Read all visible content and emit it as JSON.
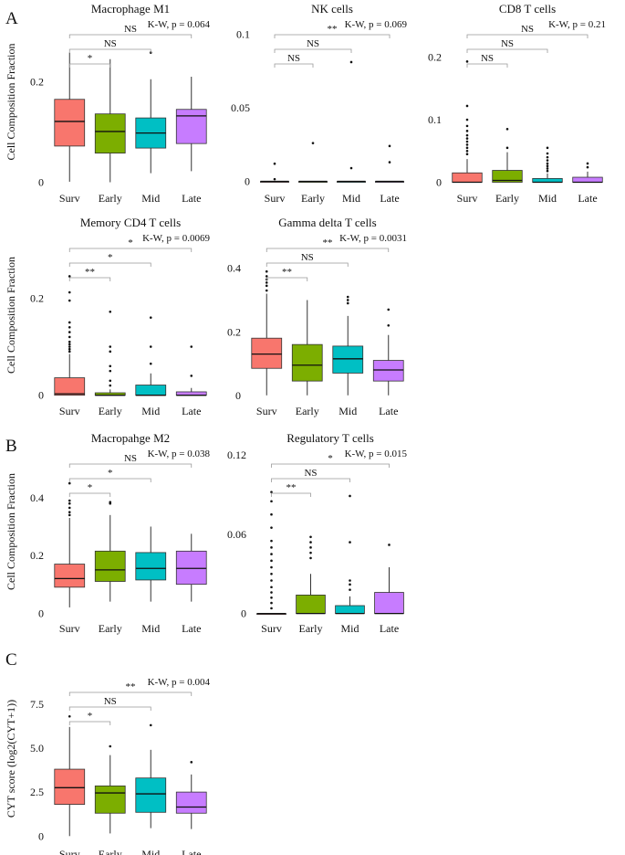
{
  "figure": {
    "panel_letters": [
      "A",
      "B",
      "C"
    ],
    "colors": {
      "Surv": "#f8766d",
      "Early": "#7cae00",
      "Mid": "#00bfc4",
      "Late": "#c77cff"
    }
  },
  "chart_data": [
    {
      "type": "box",
      "id": "macro-m1",
      "title": "Macrophage M1",
      "ylabel": "Cell Composition Fraction",
      "categories": [
        "Surv",
        "Early",
        "Mid",
        "Late"
      ],
      "ylim": [
        -0.01,
        0.33
      ],
      "yticks": [
        0,
        0.2
      ],
      "ytick_labels": [
        "0",
        "0.2"
      ],
      "boxes": [
        {
          "q1": 0.072,
          "median": 0.121,
          "q3": 0.165,
          "wlo": 0.001,
          "whi": 0.258,
          "outliers": []
        },
        {
          "q1": 0.058,
          "median": 0.101,
          "q3": 0.136,
          "wlo": 0.0,
          "whi": 0.245,
          "outliers": []
        },
        {
          "q1": 0.068,
          "median": 0.098,
          "q3": 0.128,
          "wlo": 0.018,
          "whi": 0.205,
          "outliers": [
            0.258
          ]
        },
        {
          "q1": 0.077,
          "median": 0.132,
          "q3": 0.145,
          "wlo": 0.022,
          "whi": 0.21,
          "outliers": []
        }
      ],
      "brackets": [
        {
          "from": "Surv",
          "to": "Early",
          "label": "*"
        },
        {
          "from": "Surv",
          "to": "Mid",
          "label": "NS"
        },
        {
          "from": "Surv",
          "to": "Late",
          "label": "NS"
        }
      ],
      "kw": "K-W, p = 0.064"
    },
    {
      "type": "box",
      "id": "nk",
      "title": "NK cells",
      "ylabel": "",
      "categories": [
        "Surv",
        "Early",
        "Mid",
        "Late"
      ],
      "ylim": [
        -0.004,
        0.112
      ],
      "yticks": [
        0,
        0.05,
        0.1
      ],
      "ytick_labels": [
        "0",
        "0.05",
        "0.1"
      ],
      "boxes": [
        {
          "q1": 0.0,
          "median": 0.0,
          "q3": 0.0,
          "wlo": 0.0,
          "whi": 0.0,
          "outliers": [
            0.012,
            0.0015
          ]
        },
        {
          "q1": 0.0,
          "median": 0.0,
          "q3": 0.0,
          "wlo": 0.0,
          "whi": 0.0,
          "outliers": [
            0.026
          ]
        },
        {
          "q1": 0.0,
          "median": 0.0,
          "q3": 0.0,
          "wlo": 0.0,
          "whi": 0.0,
          "outliers": [
            0.081,
            0.009
          ]
        },
        {
          "q1": 0.0,
          "median": 0.0,
          "q3": 0.0,
          "wlo": 0.0,
          "whi": 0.0,
          "outliers": [
            0.024,
            0.013
          ]
        }
      ],
      "brackets": [
        {
          "from": "Surv",
          "to": "Early",
          "label": "NS"
        },
        {
          "from": "Surv",
          "to": "Mid",
          "label": "NS"
        },
        {
          "from": "Surv",
          "to": "Late",
          "label": "**"
        }
      ],
      "kw": "K-W, p = 0.069"
    },
    {
      "type": "box",
      "id": "cd8",
      "title": "CD8 T cells",
      "ylabel": "",
      "categories": [
        "Surv",
        "Early",
        "Mid",
        "Late"
      ],
      "ylim": [
        -0.008,
        0.265
      ],
      "yticks": [
        0,
        0.1,
        0.2
      ],
      "ytick_labels": [
        "0",
        "0.1",
        "0.2"
      ],
      "boxes": [
        {
          "q1": 0.0,
          "median": 0.0,
          "q3": 0.015,
          "wlo": 0.0,
          "whi": 0.037,
          "outliers": [
            0.045,
            0.05,
            0.055,
            0.06,
            0.065,
            0.07,
            0.075,
            0.082,
            0.09,
            0.1,
            0.122,
            0.193
          ]
        },
        {
          "q1": 0.0,
          "median": 0.003,
          "q3": 0.019,
          "wlo": 0.0,
          "whi": 0.048,
          "outliers": [
            0.055,
            0.085
          ]
        },
        {
          "q1": 0.0,
          "median": 0.0,
          "q3": 0.006,
          "wlo": 0.0,
          "whi": 0.014,
          "outliers": [
            0.018,
            0.022,
            0.026,
            0.03,
            0.035,
            0.04,
            0.046,
            0.055
          ]
        },
        {
          "q1": 0.0,
          "median": 0.0,
          "q3": 0.008,
          "wlo": 0.0,
          "whi": 0.017,
          "outliers": [
            0.024,
            0.03
          ]
        }
      ],
      "brackets": [
        {
          "from": "Surv",
          "to": "Early",
          "label": "NS"
        },
        {
          "from": "Surv",
          "to": "Mid",
          "label": "NS"
        },
        {
          "from": "Surv",
          "to": "Late",
          "label": "NS"
        }
      ],
      "kw": "K-W, p = 0.21"
    },
    {
      "type": "box",
      "id": "cd4mem",
      "title": "Memory CD4 T cells",
      "ylabel": "Cell Composition Fraction",
      "categories": [
        "Surv",
        "Early",
        "Mid",
        "Late"
      ],
      "ylim": [
        -0.01,
        0.34
      ],
      "yticks": [
        0,
        0.2
      ],
      "ytick_labels": [
        "0",
        "0.2"
      ],
      "boxes": [
        {
          "q1": 0.0,
          "median": 0.003,
          "q3": 0.036,
          "wlo": 0.0,
          "whi": 0.085,
          "outliers": [
            0.09,
            0.095,
            0.1,
            0.105,
            0.11,
            0.12,
            0.13,
            0.14,
            0.15,
            0.195,
            0.212,
            0.245
          ]
        },
        {
          "q1": 0.0,
          "median": 0.0,
          "q3": 0.005,
          "wlo": 0.0,
          "whi": 0.012,
          "outliers": [
            0.02,
            0.03,
            0.05,
            0.06,
            0.09,
            0.1,
            0.172
          ]
        },
        {
          "q1": 0.0,
          "median": 0.0,
          "q3": 0.021,
          "wlo": 0.0,
          "whi": 0.045,
          "outliers": [
            0.065,
            0.1,
            0.16
          ]
        },
        {
          "q1": 0.0,
          "median": 0.0,
          "q3": 0.007,
          "wlo": 0.0,
          "whi": 0.015,
          "outliers": [
            0.04,
            0.1
          ]
        }
      ],
      "brackets": [
        {
          "from": "Surv",
          "to": "Early",
          "label": "**"
        },
        {
          "from": "Surv",
          "to": "Mid",
          "label": "*"
        },
        {
          "from": "Surv",
          "to": "Late",
          "label": "*"
        }
      ],
      "kw": "K-W, p = 0.0069"
    },
    {
      "type": "box",
      "id": "gammadelta",
      "title": "Gamma delta T cells",
      "ylabel": "",
      "categories": [
        "Surv",
        "Early",
        "Mid",
        "Late"
      ],
      "ylim": [
        -0.015,
        0.52
      ],
      "yticks": [
        0,
        0.2,
        0.4
      ],
      "ytick_labels": [
        "0",
        "0.2",
        "0.4"
      ],
      "boxes": [
        {
          "q1": 0.085,
          "median": 0.13,
          "q3": 0.18,
          "wlo": 0.0,
          "whi": 0.32,
          "outliers": [
            0.33,
            0.345,
            0.355,
            0.365,
            0.375,
            0.39
          ]
        },
        {
          "q1": 0.045,
          "median": 0.095,
          "q3": 0.16,
          "wlo": 0.0,
          "whi": 0.3,
          "outliers": []
        },
        {
          "q1": 0.07,
          "median": 0.115,
          "q3": 0.155,
          "wlo": 0.0,
          "whi": 0.25,
          "outliers": [
            0.29,
            0.3,
            0.31
          ]
        },
        {
          "q1": 0.045,
          "median": 0.08,
          "q3": 0.11,
          "wlo": 0.0,
          "whi": 0.19,
          "outliers": [
            0.22,
            0.27
          ]
        }
      ],
      "brackets": [
        {
          "from": "Surv",
          "to": "Early",
          "label": "**"
        },
        {
          "from": "Surv",
          "to": "Mid",
          "label": "NS"
        },
        {
          "from": "Surv",
          "to": "Late",
          "label": "**"
        }
      ],
      "kw": "K-W, p = 0.0031"
    },
    {
      "type": "box",
      "id": "macro-m2",
      "title": "Macropahge M2",
      "ylabel": "Cell Composition Fraction",
      "categories": [
        "Surv",
        "Early",
        "Mid",
        "Late"
      ],
      "ylim": [
        -0.015,
        0.58
      ],
      "yticks": [
        0,
        0.2,
        0.4
      ],
      "ytick_labels": [
        "0",
        "0.2",
        "0.4"
      ],
      "boxes": [
        {
          "q1": 0.09,
          "median": 0.12,
          "q3": 0.17,
          "wlo": 0.02,
          "whi": 0.33,
          "outliers": [
            0.34,
            0.35,
            0.365,
            0.38,
            0.39,
            0.45
          ]
        },
        {
          "q1": 0.11,
          "median": 0.15,
          "q3": 0.215,
          "wlo": 0.04,
          "whi": 0.34,
          "outliers": [
            0.38,
            0.385
          ]
        },
        {
          "q1": 0.115,
          "median": 0.155,
          "q3": 0.21,
          "wlo": 0.04,
          "whi": 0.3,
          "outliers": []
        },
        {
          "q1": 0.1,
          "median": 0.155,
          "q3": 0.215,
          "wlo": 0.04,
          "whi": 0.275,
          "outliers": []
        }
      ],
      "brackets": [
        {
          "from": "Surv",
          "to": "Early",
          "label": "*"
        },
        {
          "from": "Surv",
          "to": "Mid",
          "label": "*"
        },
        {
          "from": "Surv",
          "to": "Late",
          "label": "NS"
        }
      ],
      "kw": "K-W, p = 0.038"
    },
    {
      "type": "box",
      "id": "treg",
      "title": "Regulatory T cells",
      "ylabel": "",
      "categories": [
        "Surv",
        "Early",
        "Mid",
        "Late"
      ],
      "ylim": [
        -0.003,
        0.127
      ],
      "yticks": [
        0,
        0.06,
        0.12
      ],
      "ytick_labels": [
        "0",
        "0.06",
        "0.12"
      ],
      "boxes": [
        {
          "q1": 0.0,
          "median": 0.0,
          "q3": 0.0,
          "wlo": 0.0,
          "whi": 0.0,
          "outliers": [
            0.004,
            0.008,
            0.012,
            0.016,
            0.02,
            0.025,
            0.03,
            0.035,
            0.04,
            0.045,
            0.05,
            0.055,
            0.065,
            0.075,
            0.085,
            0.092
          ]
        },
        {
          "q1": 0.0,
          "median": 0.0,
          "q3": 0.014,
          "wlo": 0.0,
          "whi": 0.03,
          "outliers": [
            0.042,
            0.046,
            0.05,
            0.054,
            0.058
          ]
        },
        {
          "q1": 0.0,
          "median": 0.0,
          "q3": 0.006,
          "wlo": 0.0,
          "whi": 0.013,
          "outliers": [
            0.018,
            0.022,
            0.025,
            0.054,
            0.089
          ]
        },
        {
          "q1": 0.0,
          "median": 0.0,
          "q3": 0.016,
          "wlo": 0.0,
          "whi": 0.035,
          "outliers": [
            0.052
          ]
        }
      ],
      "brackets": [
        {
          "from": "Surv",
          "to": "Early",
          "label": "**"
        },
        {
          "from": "Surv",
          "to": "Mid",
          "label": "NS"
        },
        {
          "from": "Surv",
          "to": "Late",
          "label": "*"
        }
      ],
      "kw": "K-W, p = 0.015"
    },
    {
      "type": "box",
      "id": "cyt",
      "title": "",
      "ylabel": "CYT score (log2(CYT+1))",
      "categories": [
        "Surv",
        "Early",
        "Mid",
        "Late"
      ],
      "ylim": [
        -0.4,
        9.2
      ],
      "yticks": [
        0,
        2.5,
        5.0,
        7.5
      ],
      "ytick_labels": [
        "0",
        "2.5",
        "5.0",
        "7.5"
      ],
      "boxes": [
        {
          "q1": 1.8,
          "median": 2.75,
          "q3": 3.8,
          "wlo": 0.0,
          "whi": 6.2,
          "outliers": [
            6.8
          ]
        },
        {
          "q1": 1.3,
          "median": 2.45,
          "q3": 2.85,
          "wlo": 0.15,
          "whi": 4.6,
          "outliers": [
            5.1
          ]
        },
        {
          "q1": 1.35,
          "median": 2.4,
          "q3": 3.3,
          "wlo": 0.45,
          "whi": 4.9,
          "outliers": [
            6.3
          ]
        },
        {
          "q1": 1.3,
          "median": 1.65,
          "q3": 2.5,
          "wlo": 0.4,
          "whi": 3.5,
          "outliers": [
            4.2
          ]
        }
      ],
      "brackets": [
        {
          "from": "Surv",
          "to": "Early",
          "label": "*"
        },
        {
          "from": "Surv",
          "to": "Mid",
          "label": "NS"
        },
        {
          "from": "Surv",
          "to": "Late",
          "label": "**"
        }
      ],
      "kw": "K-W, p = 0.004"
    }
  ]
}
